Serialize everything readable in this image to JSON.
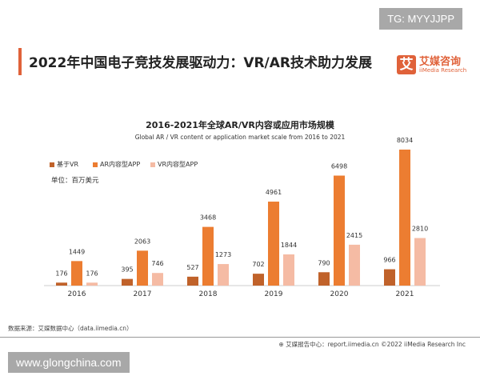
{
  "watermarks": {
    "top": "TG: MYYJJPP",
    "bottom": "www.glongchina.com"
  },
  "header": {
    "title": "2022年中国电子竞技发展驱动力：VR/AR技术助力发展",
    "logo_cn": "艾媒咨询",
    "logo_en": "iiMedia Research",
    "logo_mark": "艾"
  },
  "unit": "单位：百万美元",
  "source": "数据来源：艾媒数据中心（data.iimedia.cn）",
  "footer": "艾媒报告中心：report.iimedia.cn   ©2022  iiMedia Research  Inc",
  "chart_data": {
    "type": "bar",
    "title": "2016-2021年全球AR/VR内容或应用市场规模",
    "subtitle": "Global AR / VR content or application market scale from 2016 to 2021",
    "categories": [
      "2016",
      "2017",
      "2018",
      "2019",
      "2020",
      "2021"
    ],
    "series": [
      {
        "name": "基于VR",
        "color": "#c0622a",
        "values": [
          176,
          395,
          527,
          702,
          790,
          966
        ]
      },
      {
        "name": "AR内容型APP",
        "color": "#ec7d31",
        "values": [
          1449,
          2063,
          3468,
          4961,
          6498,
          8034
        ]
      },
      {
        "name": "VR内容型APP",
        "color": "#f5bba4",
        "values": [
          176,
          746,
          1273,
          1844,
          2415,
          2810
        ]
      }
    ],
    "legend": "top-left",
    "grid": false,
    "ylim": [
      0,
      8034
    ]
  }
}
